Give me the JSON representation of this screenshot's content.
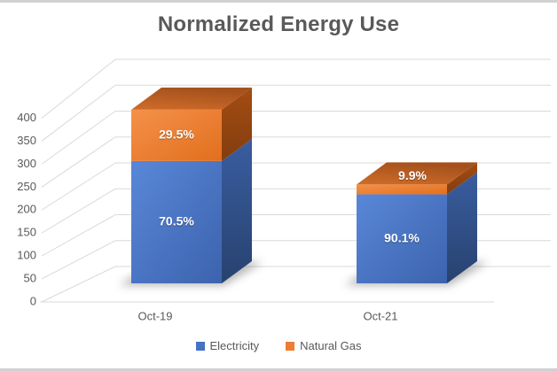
{
  "colors": {
    "electricity": "#4472C4",
    "natural_gas": "#ED7D31",
    "axis_text": "#595959",
    "gridline": "#D9D9D9",
    "title_text": "#595959",
    "data_label_text": "#FFFFFF",
    "edge_border": "#D1D1D1"
  },
  "chart_data": {
    "type": "bar",
    "subtype": "3d-stacked-column",
    "title": "Normalized Energy Use",
    "categories": [
      "Oct-19",
      "Oct-21"
    ],
    "series": [
      {
        "name": "Electricity",
        "color": "#4472C4",
        "values": [
          250,
          182
        ],
        "percent_labels": [
          "70.5%",
          "90.1%"
        ]
      },
      {
        "name": "Natural Gas",
        "color": "#ED7D31",
        "values": [
          105,
          20
        ],
        "percent_labels": [
          "29.5%",
          "9.9%"
        ]
      }
    ],
    "totals_estimated": [
      355,
      202
    ],
    "ylim": [
      0,
      400
    ],
    "ytick_step": 50,
    "yticks": [
      0,
      50,
      100,
      150,
      200,
      250,
      300,
      350,
      400
    ],
    "grid": true,
    "legend_position": "bottom"
  }
}
